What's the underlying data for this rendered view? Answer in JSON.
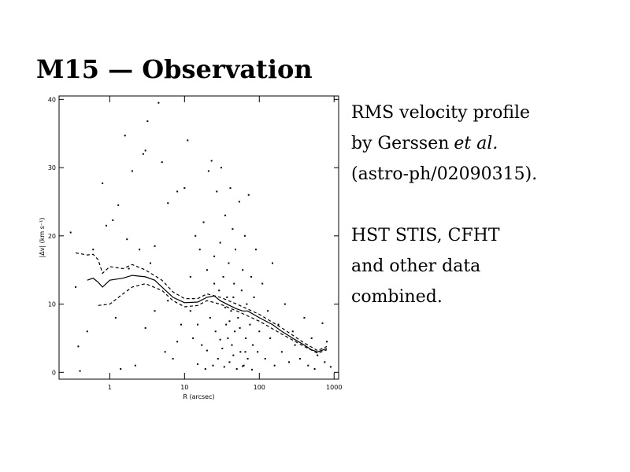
{
  "title": "M15 — Observation",
  "text_block": {
    "lines": [
      [
        "RMS velocity profile"
      ],
      [
        "by Gerssen",
        "et al."
      ],
      [
        "(astro-ph/02090315)."
      ],
      [
        "HST STIS, CFHT"
      ],
      [
        "and other data"
      ],
      [
        "combined."
      ]
    ]
  },
  "chart_data": {
    "type": "scatter",
    "x_label": "R (arcsec)",
    "y_label": "|Δv| (km s⁻¹)",
    "xscale": "log",
    "xlim": [
      0.21,
      1150
    ],
    "ylim": [
      -1,
      40.5
    ],
    "xticks": [
      1,
      10,
      100,
      1000
    ],
    "yticks": [
      0,
      10,
      20,
      30,
      40
    ],
    "points": {
      "color": "#000000",
      "x": [
        0.3,
        0.35,
        0.38,
        0.4,
        0.5,
        0.6,
        0.8,
        0.9,
        1.1,
        1.2,
        1.3,
        1.4,
        1.6,
        1.7,
        1.8,
        2,
        2.2,
        2.5,
        2.8,
        3,
        3.2,
        3.5,
        4,
        4.5,
        5,
        5.5,
        6,
        7,
        8,
        9,
        10,
        11,
        12,
        13,
        14,
        15,
        16,
        17,
        18,
        19,
        20,
        21,
        22,
        23,
        24,
        25,
        26,
        27,
        28,
        29,
        30,
        31,
        32,
        33,
        34,
        35,
        36,
        37,
        38,
        39,
        40,
        41,
        42,
        43,
        44,
        45,
        46,
        47,
        48,
        50,
        52,
        54,
        56,
        58,
        60,
        62,
        64,
        66,
        68,
        70,
        72,
        75,
        78,
        80,
        82,
        85,
        90,
        95,
        100,
        110,
        120,
        130,
        140,
        150,
        160,
        180,
        200,
        220,
        250,
        280,
        300,
        350,
        400,
        450,
        500,
        550,
        600,
        700,
        750,
        800,
        900,
        15,
        8,
        6,
        4,
        3,
        25,
        35,
        45,
        55,
        65,
        30,
        40,
        60,
        20,
        12
      ],
      "y": [
        20.5,
        12.5,
        3.8,
        0.2,
        6,
        18,
        27.7,
        21.5,
        22.3,
        8,
        24.5,
        0.5,
        34.7,
        19.5,
        15.2,
        29.5,
        1,
        18,
        32,
        32.5,
        36.8,
        16,
        9,
        39.5,
        30.8,
        3,
        24.8,
        2,
        26.5,
        7,
        27,
        34,
        14,
        5,
        20,
        1.2,
        18,
        4,
        22,
        0.5,
        15,
        29.5,
        8,
        31,
        1,
        17,
        6,
        26.5,
        2,
        12,
        19,
        30,
        3.5,
        14,
        0.8,
        23,
        7,
        11,
        5,
        16,
        1.5,
        27,
        9,
        4,
        21,
        2.5,
        13,
        6,
        18,
        0.5,
        8,
        25,
        3,
        12,
        15,
        1,
        20,
        5,
        10,
        2,
        26,
        7,
        14,
        0.4,
        4,
        11,
        18,
        3,
        6,
        13,
        2,
        9,
        5,
        16,
        1,
        7,
        3,
        10,
        1.5,
        6,
        4,
        2,
        8,
        1,
        5,
        0.5,
        2.5,
        7.2,
        1.5,
        4.5,
        0.8,
        7,
        4.5,
        10.5,
        18.5,
        6.5,
        13,
        9.5,
        11,
        6.5,
        3,
        4.8,
        7.5,
        0.9,
        3.2,
        9
      ]
    },
    "lines": [
      {
        "color": "#000000",
        "style": "solid",
        "x": [
          0.5,
          0.6,
          0.7,
          0.8,
          1,
          1.5,
          2,
          3,
          4,
          5,
          7,
          10,
          15,
          20,
          25,
          30,
          40,
          50,
          60,
          70,
          100,
          150,
          200,
          300,
          400,
          500,
          600,
          800
        ],
        "y": [
          13.5,
          13.8,
          13.2,
          12.5,
          13.5,
          13.8,
          14.2,
          14,
          13.5,
          12.5,
          11,
          10.2,
          10.3,
          11,
          11.2,
          10.5,
          9.8,
          9.3,
          9,
          9,
          8,
          7,
          6,
          4.8,
          4,
          3.3,
          3,
          3.5
        ]
      },
      {
        "color": "#000000",
        "style": "dashed",
        "x": [
          0.35,
          0.5,
          0.6,
          0.7,
          0.8,
          1,
          1.5,
          2,
          3,
          5,
          7,
          10,
          15,
          20,
          30,
          50,
          100,
          200,
          400,
          600,
          800
        ],
        "y": [
          17.5,
          17.2,
          17.3,
          16.5,
          14.5,
          15.5,
          15.2,
          15.8,
          15,
          13.5,
          11.8,
          10.8,
          10.8,
          11.5,
          11,
          10,
          8.5,
          6.5,
          4.3,
          3.2,
          3.8
        ]
      },
      {
        "color": "#000000",
        "style": "dashed",
        "x": [
          0.7,
          1,
          1.5,
          2,
          3,
          5,
          7,
          10,
          15,
          20,
          30,
          50,
          100,
          200,
          400,
          600,
          800
        ],
        "y": [
          9.8,
          10,
          11.5,
          12.5,
          13,
          12,
          10.5,
          9.6,
          9.8,
          10.5,
          10,
          9,
          7.5,
          5.6,
          3.8,
          2.8,
          3.3
        ]
      }
    ]
  }
}
